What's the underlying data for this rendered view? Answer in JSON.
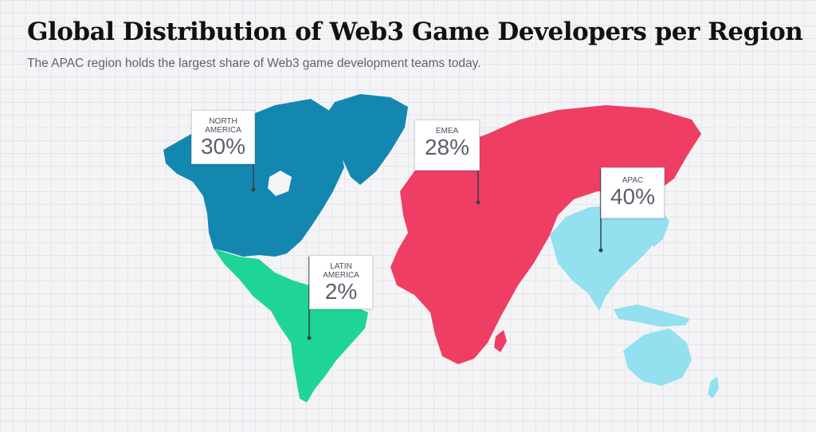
{
  "header": {
    "title": "Global Distribution of Web3 Game Developers per Region",
    "subtitle": "The APAC region holds the largest share of Web3 game development teams today."
  },
  "colors": {
    "north_america": "#1487b1",
    "latin_america": "#1fd595",
    "emea": "#ee3e64",
    "apac": "#93e0ef",
    "pin": "#3a3f4a"
  },
  "regions": {
    "north_america": {
      "label": "NORTH\nAMERICA",
      "value": "30%",
      "share": 30
    },
    "emea": {
      "label": "EMEA",
      "value": "28%",
      "share": 28
    },
    "apac": {
      "label": "APAC",
      "value": "40%",
      "share": 40
    },
    "latin_america": {
      "label": "LATIN\nAMERICA",
      "value": "2%",
      "share": 2
    }
  }
}
